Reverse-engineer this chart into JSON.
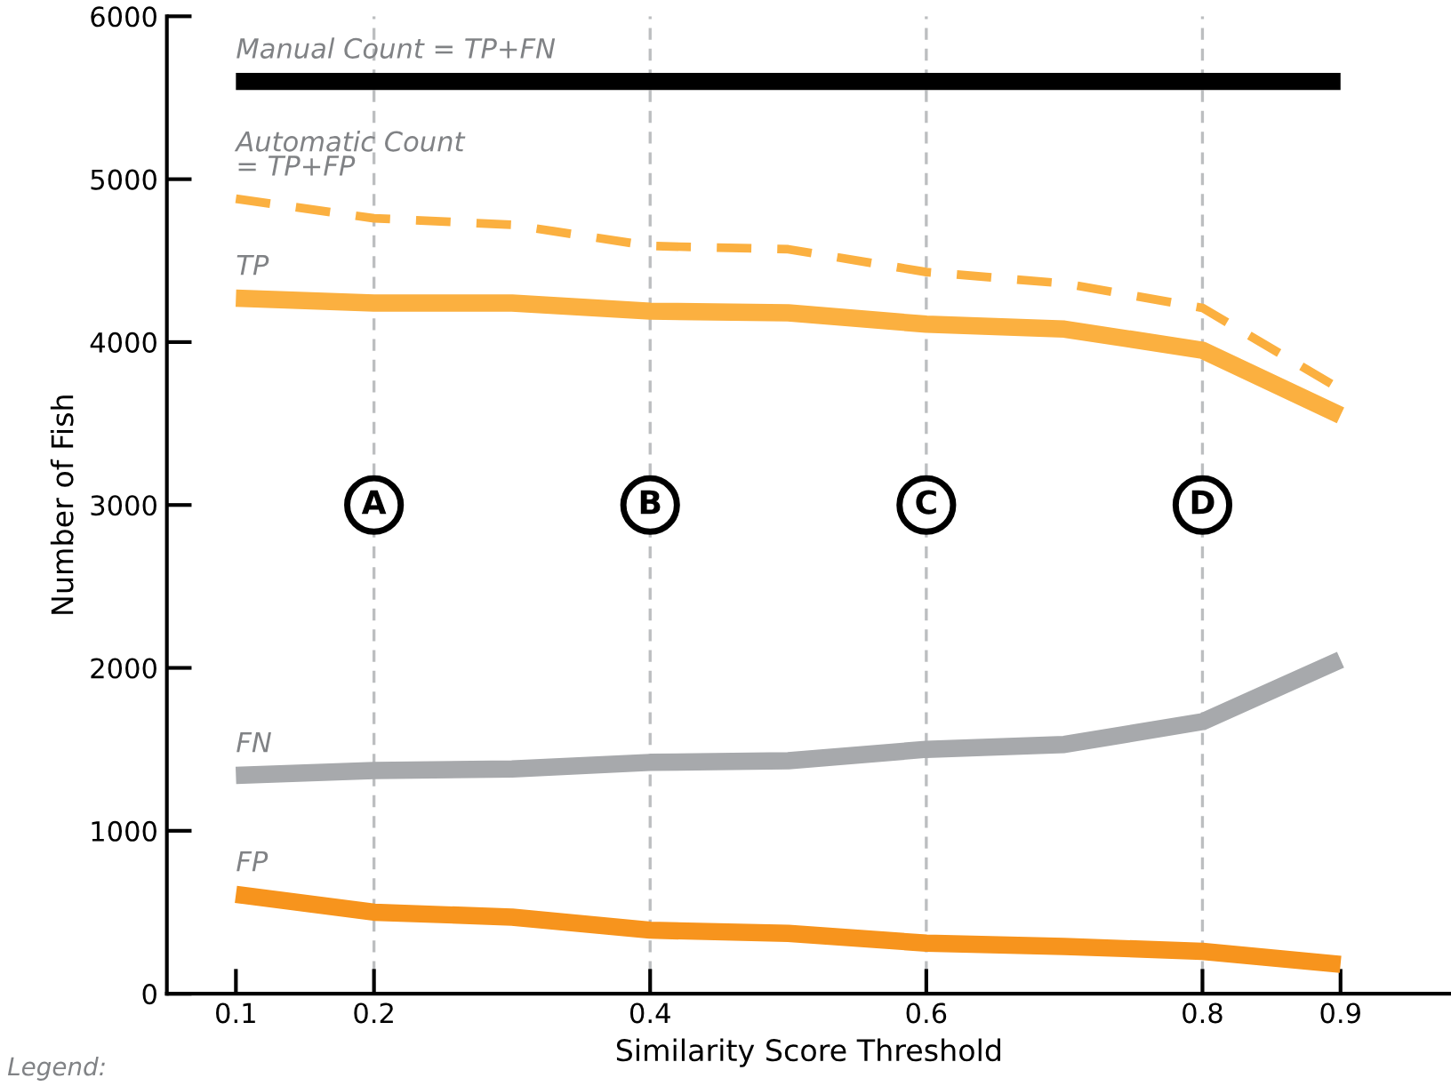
{
  "chart_data": {
    "type": "line",
    "xlabel": "Similarity Score Threshold",
    "ylabel": "Number of Fish",
    "x": [
      0.1,
      0.2,
      0.3,
      0.4,
      0.5,
      0.6,
      0.7,
      0.8,
      0.9
    ],
    "series": [
      {
        "name": "Manual Count = TP+FN",
        "color": "#000000",
        "line_style": "solid",
        "values": [
          5600,
          5600,
          5600,
          5600,
          5600,
          5600,
          5600,
          5600,
          5600
        ]
      },
      {
        "name": "Automatic Count\n= TP+FP",
        "color": "#fbb040",
        "line_style": "dashed",
        "values": [
          4880,
          4760,
          4720,
          4590,
          4570,
          4430,
          4360,
          4210,
          3710
        ]
      },
      {
        "name": "TP",
        "color": "#fbb040",
        "line_style": "solid",
        "values": [
          4270,
          4240,
          4240,
          4190,
          4180,
          4110,
          4080,
          3950,
          3550
        ]
      },
      {
        "name": "FN",
        "color": "#a7a9ac",
        "line_style": "solid",
        "values": [
          1340,
          1370,
          1380,
          1420,
          1430,
          1500,
          1530,
          1670,
          2050
        ]
      },
      {
        "name": "FP",
        "color": "#f7941d",
        "line_style": "solid",
        "values": [
          610,
          500,
          470,
          390,
          370,
          310,
          290,
          260,
          180
        ]
      }
    ],
    "ref_lines": [
      {
        "axis": "x",
        "value": 0.2,
        "label": "A",
        "color": "#bcbec0",
        "line_style": "dashed"
      },
      {
        "axis": "x",
        "value": 0.4,
        "label": "B",
        "color": "#bcbec0",
        "line_style": "dashed"
      },
      {
        "axis": "x",
        "value": 0.6,
        "label": "C",
        "color": "#bcbec0",
        "line_style": "dashed"
      },
      {
        "axis": "x",
        "value": 0.8,
        "label": "D",
        "color": "#bcbec0",
        "line_style": "dashed"
      }
    ],
    "xlim": [
      0.05,
      0.98
    ],
    "xticks": [
      0.1,
      0.2,
      0.4,
      0.6,
      0.8,
      0.9
    ],
    "ylim": [
      0,
      6000
    ],
    "yticks": [
      0,
      1000,
      2000,
      3000,
      4000,
      5000,
      6000
    ],
    "grid": false,
    "legend": false,
    "marker": "none",
    "annotations": [
      "Legend:"
    ]
  }
}
